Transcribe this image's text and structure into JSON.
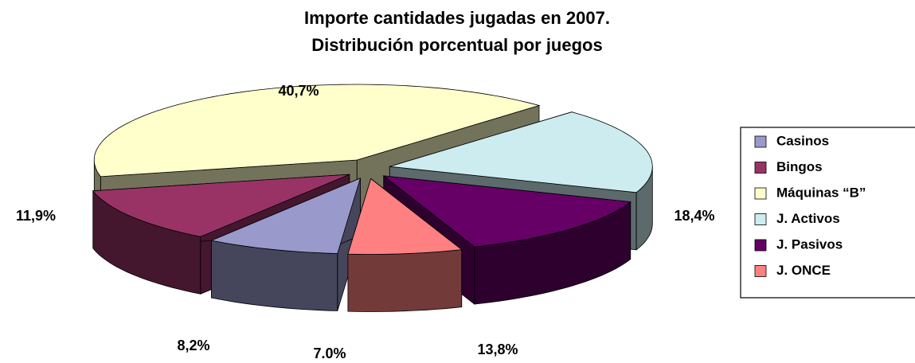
{
  "chart_data": {
    "type": "pie3d",
    "title": [
      "Importe cantidades jugadas en 2007.",
      "Distribución porcentual por juegos"
    ],
    "categories": [
      "Casinos",
      "Bingos",
      "Máquinas “B”",
      "J. Activos",
      "J. Pasivos",
      "J. ONCE"
    ],
    "values": [
      8.2,
      11.9,
      40.7,
      18.4,
      13.8,
      7.0
    ],
    "value_labels": [
      "8,2%",
      "11,9%",
      "40,7%",
      "18,4%",
      "13,8%",
      "7.0%"
    ],
    "colors": [
      "#9999cc",
      "#993366",
      "#ffffcc",
      "#ccecf0",
      "#660066",
      "#ff8080"
    ],
    "legend": "right"
  }
}
